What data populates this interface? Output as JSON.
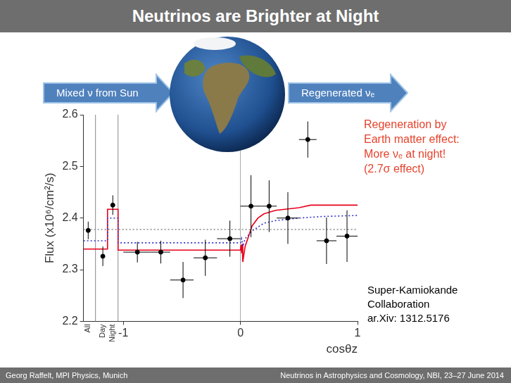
{
  "slide": {
    "title": "Neutrinos are Brighter at Night",
    "arrow_left": "Mixed ν from Sun",
    "arrow_right": "Regenerated νₑ",
    "footer_left": "Georg Raffelt, MPI Physics, Munich",
    "footer_right": "Neutrinos in Astrophysics and Cosmology, NBI, 23–27 June 2014"
  },
  "chart_data": {
    "type": "scatter",
    "x_label": "cosθz",
    "y_label": "Flux (x10⁶/cm²/s)",
    "xlim": [
      -1.34,
      1
    ],
    "xticks": [
      {
        "value": -1.3,
        "label": "All"
      },
      {
        "value": -1.175,
        "label": "Day"
      },
      {
        "value": -1.09,
        "label": "Night"
      },
      -1,
      0,
      1
    ],
    "ylim": [
      2.2,
      2.6
    ],
    "yticks": [
      2.2,
      2.3,
      2.4,
      2.5,
      2.6
    ],
    "annotation": [
      "Regeneration by",
      "Earth matter effect:",
      "More νₑ at night!",
      "(2.7σ effect)"
    ],
    "citation": [
      "Super-Kamiokande",
      "Collaboration",
      "ar.Xiv: 1312.5176"
    ],
    "series": [
      {
        "type": "line",
        "color": "#999999",
        "line_style": "dotted",
        "x": [
          -1.34,
          1
        ],
        "values": [
          2.378,
          2.378
        ]
      },
      {
        "type": "line",
        "color": "#3333cc",
        "line_style": "dotted",
        "x": [
          -1.34,
          -1.135,
          -1.135,
          -1.045,
          -1.045,
          0,
          0.01,
          0.02,
          0.04,
          0.1,
          0.2,
          0.3,
          0.5,
          0.7,
          1.0
        ],
        "values": [
          2.356,
          2.356,
          2.4,
          2.4,
          2.352,
          2.352,
          2.36,
          2.345,
          2.36,
          2.375,
          2.39,
          2.395,
          2.4,
          2.403,
          2.405
        ]
      },
      {
        "type": "line",
        "color": "#e8001b",
        "line_style": "solid",
        "x": [
          -1.34,
          -1.135,
          -1.135,
          -1.045,
          -1.045,
          0,
          0.005,
          0.01,
          0.015,
          0.02,
          0.04,
          0.07,
          0.1,
          0.15,
          0.2,
          0.3,
          0.5,
          0.6,
          1.0
        ],
        "values": [
          2.34,
          2.34,
          2.417,
          2.417,
          2.338,
          2.338,
          2.348,
          2.332,
          2.35,
          2.315,
          2.345,
          2.365,
          2.385,
          2.4,
          2.408,
          2.415,
          2.42,
          2.425,
          2.425
        ]
      },
      {
        "type": "scatter",
        "color": "#000000",
        "marker": "circle",
        "x": [
          -1.3,
          -1.175,
          -1.09,
          -0.88,
          -0.68,
          -0.49,
          -0.3,
          -0.09,
          0.09,
          0.245,
          0.405,
          0.575,
          0.735,
          0.91
        ],
        "values": [
          2.376,
          2.326,
          2.425,
          2.334,
          2.334,
          2.28,
          2.323,
          2.36,
          2.423,
          2.423,
          2.4,
          2.552,
          2.356,
          2.365
        ],
        "x_low": [
          null,
          null,
          null,
          -1,
          -0.76,
          -0.6,
          -0.4,
          -0.2,
          0,
          0.18,
          0.31,
          0.5,
          0.65,
          0.82
        ],
        "x_high": [
          null,
          null,
          null,
          -0.76,
          -0.6,
          -0.4,
          -0.2,
          0,
          0.18,
          0.31,
          0.5,
          0.65,
          0.82,
          1
        ],
        "error": [
          0.017,
          0.019,
          0.019,
          0.02,
          0.022,
          0.035,
          0.035,
          0.035,
          0.06,
          0.05,
          0.05,
          0.035,
          0.045,
          0.05
        ]
      }
    ]
  }
}
